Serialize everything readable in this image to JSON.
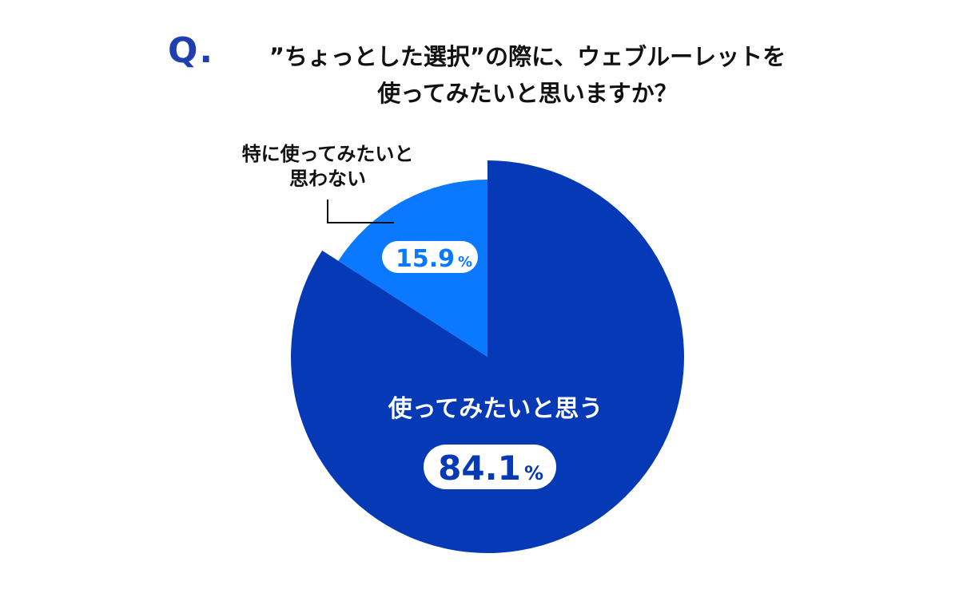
{
  "question": {
    "mark": "Q.",
    "line1": "”ちょっとした選択”の際に、ウェブルーレットを",
    "line2": "使ってみたいと思いますか？"
  },
  "colors": {
    "accent": "#1f3fae",
    "major_slice": "#0539b5",
    "minor_slice": "#0a78ff",
    "label_bg": "#ffffff"
  },
  "chart_data": {
    "type": "pie",
    "slices": [
      {
        "label": "使ってみたいと思う",
        "value": 84.1,
        "value_text": "84.1",
        "unit": "%",
        "color": "#0539b5"
      },
      {
        "label_lines": [
          "特に使ってみたいと",
          "思わない"
        ],
        "value": 15.9,
        "value_text": "15.9",
        "unit": "%",
        "color": "#0a78ff"
      }
    ],
    "start": "12 o'clock",
    "direction": "clockwise",
    "legend": "none"
  }
}
